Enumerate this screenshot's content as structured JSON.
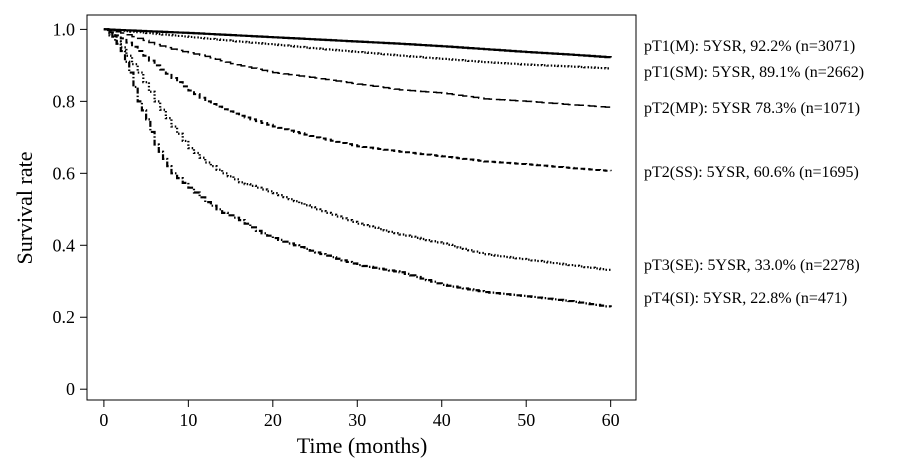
{
  "chart_data": {
    "type": "line",
    "title": "",
    "xlabel": "Time (months)",
    "ylabel": "Survival rate",
    "xlim": [
      -2,
      63
    ],
    "ylim": [
      -0.03,
      1.04
    ],
    "xticks": [
      0,
      10,
      20,
      30,
      40,
      50,
      60
    ],
    "xtick_labels": [
      "0",
      "10",
      "20",
      "30",
      "40",
      "50",
      "60"
    ],
    "yticks": [
      0,
      0.2,
      0.4,
      0.6,
      0.8,
      1.0
    ],
    "ytick_labels": [
      "0",
      "0.2",
      "0.4",
      "0.6",
      "0.8",
      "1.0"
    ],
    "grid": false,
    "series": [
      {
        "label": "pT1(M): 5YSR, 92.2% (n=3071)",
        "style": "solid",
        "x": [
          0,
          5,
          10,
          15,
          20,
          25,
          30,
          35,
          40,
          45,
          50,
          55,
          60
        ],
        "y": [
          1.0,
          0.995,
          0.99,
          0.984,
          0.978,
          0.972,
          0.966,
          0.96,
          0.953,
          0.945,
          0.937,
          0.93,
          0.922
        ]
      },
      {
        "label": "pT1(SM): 5YSR, 89.1% (n=2662)",
        "style": "dotted",
        "x": [
          0,
          5,
          10,
          15,
          20,
          25,
          30,
          35,
          40,
          45,
          50,
          55,
          60
        ],
        "y": [
          1.0,
          0.99,
          0.979,
          0.968,
          0.958,
          0.947,
          0.937,
          0.927,
          0.918,
          0.909,
          0.902,
          0.897,
          0.891
        ]
      },
      {
        "label": "pT2(MP): 5YSR 78.3% (n=1071)",
        "style": "longdash",
        "x": [
          0,
          2,
          4,
          6,
          8,
          10,
          12,
          15,
          20,
          25,
          30,
          35,
          40,
          45,
          50,
          55,
          60
        ],
        "y": [
          1.0,
          0.99,
          0.975,
          0.958,
          0.945,
          0.935,
          0.925,
          0.905,
          0.88,
          0.865,
          0.848,
          0.832,
          0.823,
          0.807,
          0.8,
          0.791,
          0.783
        ]
      },
      {
        "label": "pT2(SS): 5YSR, 60.6% (n=1695)",
        "style": "dashed",
        "x": [
          0,
          2,
          4,
          6,
          8,
          10,
          12,
          14,
          16,
          18,
          20,
          25,
          30,
          35,
          40,
          45,
          50,
          55,
          60
        ],
        "y": [
          1.0,
          0.975,
          0.94,
          0.9,
          0.865,
          0.83,
          0.8,
          0.778,
          0.76,
          0.745,
          0.73,
          0.7,
          0.675,
          0.66,
          0.647,
          0.633,
          0.625,
          0.615,
          0.606
        ]
      },
      {
        "label": "pT3(SE): 5YSR, 33.0% (n=2278)",
        "style": "dotted",
        "x": [
          0,
          2,
          4,
          6,
          8,
          10,
          12,
          14,
          16,
          18,
          20,
          25,
          30,
          35,
          40,
          45,
          50,
          55,
          60
        ],
        "y": [
          1.0,
          0.95,
          0.88,
          0.8,
          0.73,
          0.67,
          0.63,
          0.6,
          0.575,
          0.56,
          0.545,
          0.5,
          0.46,
          0.43,
          0.405,
          0.375,
          0.36,
          0.345,
          0.33
        ]
      },
      {
        "label": "pT4(SI): 5YSR, 22.8% (n=471)",
        "style": "dashdot",
        "x": [
          0,
          1,
          2,
          3,
          4,
          5,
          6,
          7,
          8,
          10,
          12,
          14,
          16,
          18,
          20,
          25,
          30,
          35,
          40,
          45,
          50,
          55,
          60
        ],
        "y": [
          1.0,
          0.98,
          0.94,
          0.88,
          0.8,
          0.75,
          0.68,
          0.64,
          0.6,
          0.56,
          0.52,
          0.49,
          0.47,
          0.44,
          0.42,
          0.38,
          0.345,
          0.325,
          0.29,
          0.27,
          0.258,
          0.245,
          0.228
        ]
      }
    ]
  }
}
